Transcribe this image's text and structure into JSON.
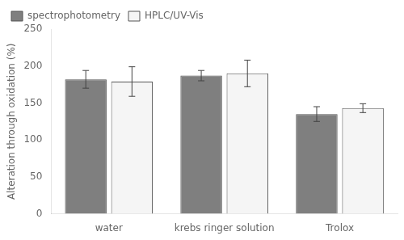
{
  "chart_data": {
    "type": "bar",
    "categories": [
      "water",
      "krebs ringer solution",
      "Trolox"
    ],
    "series": [
      {
        "name": "spectrophotometry",
        "color": "#7f7f7f",
        "values": [
          182,
          187,
          135
        ],
        "errors": [
          12,
          7,
          10
        ]
      },
      {
        "name": "HPLC/UV-Vis",
        "color": "#f5f5f5",
        "values": [
          179,
          190,
          143
        ],
        "errors": [
          20,
          18,
          6
        ]
      }
    ],
    "ylabel": "Alteration through oxidation (%)",
    "ylim": [
      0,
      250
    ],
    "yticks": [
      0,
      50,
      100,
      150,
      200,
      250
    ],
    "grid": false,
    "legend": "upper left"
  }
}
